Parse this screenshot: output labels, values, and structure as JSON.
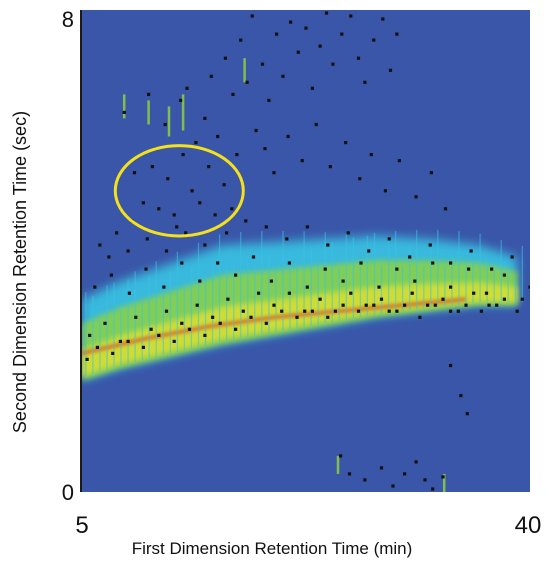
{
  "chart_data": {
    "type": "heatmap",
    "title": "",
    "xlabel": "First Dimension Retention Time (min)",
    "ylabel": "Second Dimension Retention Time (sec)",
    "xlim": [
      5,
      40
    ],
    "ylim": [
      0,
      8
    ],
    "x_ticks": [
      "5",
      "40"
    ],
    "y_ticks": [
      "0",
      "8"
    ],
    "grid": false,
    "legend": "none",
    "colors": {
      "background": "#3a56a8",
      "low": "#39c4e3",
      "mid": "#8dd23f",
      "high": "#e8e12a",
      "peak": "#e02a1b",
      "points": "#111111",
      "highlight_ellipse": "#f5e11b"
    },
    "density_band": {
      "description_units": "retention time: x in min, y in sec",
      "lower_edge": [
        [
          5.0,
          1.85
        ],
        [
          8,
          2.05
        ],
        [
          12,
          2.25
        ],
        [
          16,
          2.45
        ],
        [
          20,
          2.6
        ],
        [
          24,
          2.75
        ],
        [
          28,
          2.9
        ],
        [
          32,
          3.0
        ],
        [
          36,
          3.1
        ],
        [
          39,
          3.1
        ]
      ],
      "upper_edge": [
        [
          5.0,
          3.2
        ],
        [
          8,
          3.5
        ],
        [
          12,
          3.8
        ],
        [
          16,
          4.1
        ],
        [
          20,
          4.15
        ],
        [
          24,
          4.2
        ],
        [
          28,
          4.25
        ],
        [
          32,
          4.2
        ],
        [
          36,
          4.1
        ],
        [
          39,
          3.9
        ]
      ],
      "hot_ridge_y": [
        [
          5.0,
          2.3
        ],
        [
          10,
          2.55
        ],
        [
          15,
          2.75
        ],
        [
          20,
          2.9
        ],
        [
          25,
          3.0
        ],
        [
          30,
          3.1
        ],
        [
          35,
          3.2
        ]
      ]
    },
    "highlight_region": {
      "center": [
        12.6,
        5.0
      ],
      "radius": [
        5.0,
        0.75
      ]
    },
    "series": [
      {
        "type": "scatter",
        "points": [
          [
            8.3,
            6.3
          ],
          [
            10.2,
            6.6
          ],
          [
            11.5,
            6.1
          ],
          [
            12.7,
            6.5
          ],
          [
            13.2,
            6.7
          ],
          [
            14.6,
            6.2
          ],
          [
            15.1,
            6.9
          ],
          [
            16.2,
            7.2
          ],
          [
            16.8,
            6.6
          ],
          [
            17.4,
            7.5
          ],
          [
            17.9,
            6.8
          ],
          [
            18.3,
            7.9
          ],
          [
            19.1,
            7.1
          ],
          [
            19.6,
            6.5
          ],
          [
            20.2,
            7.6
          ],
          [
            20.7,
            6.9
          ],
          [
            21.3,
            7.8
          ],
          [
            21.9,
            7.3
          ],
          [
            22.5,
            7.7
          ],
          [
            23.0,
            6.7
          ],
          [
            23.6,
            7.4
          ],
          [
            24.1,
            7.95
          ],
          [
            24.6,
            7.1
          ],
          [
            25.3,
            7.6
          ],
          [
            26.0,
            7.9
          ],
          [
            26.6,
            7.2
          ],
          [
            27.1,
            6.8
          ],
          [
            27.8,
            7.5
          ],
          [
            28.5,
            7.85
          ],
          [
            29.1,
            7.0
          ],
          [
            29.6,
            7.6
          ],
          [
            15.6,
            5.9
          ],
          [
            17.1,
            5.6
          ],
          [
            18.6,
            6.0
          ],
          [
            19.3,
            5.7
          ],
          [
            20.0,
            5.3
          ],
          [
            21.1,
            5.9
          ],
          [
            22.2,
            5.5
          ],
          [
            23.3,
            6.1
          ],
          [
            24.4,
            5.4
          ],
          [
            25.6,
            5.8
          ],
          [
            26.7,
            5.2
          ],
          [
            27.6,
            5.6
          ],
          [
            28.7,
            5.0
          ],
          [
            29.8,
            5.5
          ],
          [
            31.1,
            4.9
          ],
          [
            32.3,
            5.3
          ],
          [
            33.4,
            4.7
          ],
          [
            9.1,
            5.3
          ],
          [
            9.8,
            4.8
          ],
          [
            10.5,
            5.4
          ],
          [
            11.0,
            4.7
          ],
          [
            11.7,
            5.2
          ],
          [
            12.2,
            4.6
          ],
          [
            12.9,
            5.6
          ],
          [
            13.6,
            5.0
          ],
          [
            14.2,
            4.8
          ],
          [
            14.9,
            5.4
          ],
          [
            15.4,
            4.6
          ],
          [
            16.1,
            5.1
          ],
          [
            16.7,
            4.7
          ],
          [
            10.8,
            5.7
          ],
          [
            13.9,
            5.8
          ],
          [
            12.4,
            4.4
          ],
          [
            8.9,
            4.5
          ],
          [
            7.7,
            4.3
          ],
          [
            6.4,
            4.1
          ],
          [
            7.1,
            3.9
          ],
          [
            8.6,
            4.0
          ],
          [
            10.1,
            4.2
          ],
          [
            11.6,
            4.0
          ],
          [
            13.1,
            4.3
          ],
          [
            14.6,
            4.1
          ],
          [
            16.3,
            4.3
          ],
          [
            17.8,
            4.5
          ],
          [
            19.4,
            4.4
          ],
          [
            21.0,
            4.2
          ],
          [
            22.6,
            4.4
          ],
          [
            24.2,
            4.1
          ],
          [
            25.8,
            4.3
          ],
          [
            27.4,
            4.0
          ],
          [
            29.0,
            4.2
          ],
          [
            30.6,
            3.9
          ],
          [
            32.2,
            4.1
          ],
          [
            33.8,
            3.8
          ],
          [
            35.4,
            4.0
          ],
          [
            37.0,
            3.7
          ],
          [
            38.6,
            3.9
          ],
          [
            6.0,
            3.4
          ],
          [
            7.3,
            3.6
          ],
          [
            8.7,
            3.3
          ],
          [
            10.0,
            3.7
          ],
          [
            11.4,
            3.4
          ],
          [
            12.8,
            3.8
          ],
          [
            14.2,
            3.5
          ],
          [
            15.6,
            3.8
          ],
          [
            17.0,
            3.6
          ],
          [
            18.4,
            3.9
          ],
          [
            19.8,
            3.5
          ],
          [
            21.2,
            3.8
          ],
          [
            22.6,
            3.4
          ],
          [
            24.0,
            3.7
          ],
          [
            25.4,
            3.5
          ],
          [
            26.8,
            3.8
          ],
          [
            28.2,
            3.4
          ],
          [
            29.6,
            3.7
          ],
          [
            31.0,
            3.5
          ],
          [
            32.4,
            3.8
          ],
          [
            33.8,
            3.4
          ],
          [
            35.2,
            3.7
          ],
          [
            36.6,
            3.3
          ],
          [
            38.0,
            3.6
          ],
          [
            39.4,
            3.2
          ],
          [
            5.6,
            2.6
          ],
          [
            6.8,
            2.8
          ],
          [
            8.0,
            2.5
          ],
          [
            9.2,
            2.9
          ],
          [
            10.4,
            2.7
          ],
          [
            11.6,
            3.0
          ],
          [
            12.8,
            2.8
          ],
          [
            14.0,
            3.1
          ],
          [
            15.2,
            2.9
          ],
          [
            16.4,
            3.2
          ],
          [
            17.6,
            3.0
          ],
          [
            18.8,
            3.3
          ],
          [
            20.0,
            3.1
          ],
          [
            21.2,
            3.3
          ],
          [
            22.4,
            3.0
          ],
          [
            23.6,
            3.2
          ],
          [
            24.8,
            3.0
          ],
          [
            26.0,
            3.3
          ],
          [
            27.2,
            3.1
          ],
          [
            28.4,
            3.2
          ],
          [
            29.6,
            3.0
          ],
          [
            30.8,
            3.3
          ],
          [
            32.0,
            3.1
          ],
          [
            33.2,
            3.2
          ],
          [
            34.4,
            3.0
          ],
          [
            35.6,
            3.3
          ],
          [
            36.8,
            3.1
          ],
          [
            38.0,
            3.2
          ],
          [
            5.4,
            2.2
          ],
          [
            6.2,
            2.4
          ],
          [
            7.4,
            2.3
          ],
          [
            8.6,
            2.5
          ],
          [
            9.8,
            2.4
          ],
          [
            11.0,
            2.6
          ],
          [
            12.2,
            2.5
          ],
          [
            13.4,
            2.7
          ],
          [
            14.6,
            2.6
          ],
          [
            15.8,
            2.8
          ],
          [
            17.0,
            2.7
          ],
          [
            18.2,
            2.9
          ],
          [
            19.4,
            2.8
          ],
          [
            20.6,
            3.0
          ],
          [
            21.8,
            2.9
          ],
          [
            23.0,
            3.0
          ],
          [
            24.2,
            2.9
          ],
          [
            25.4,
            3.1
          ],
          [
            26.6,
            3.0
          ],
          [
            27.8,
            3.1
          ],
          [
            29.0,
            3.0
          ],
          [
            30.2,
            3.1
          ],
          [
            31.4,
            2.9
          ],
          [
            32.6,
            3.1
          ],
          [
            33.8,
            3.0
          ],
          [
            35.0,
            3.1
          ],
          [
            36.2,
            3.0
          ],
          [
            37.4,
            3.1
          ],
          [
            39.0,
            3.0
          ],
          [
            40.0,
            3.4
          ],
          [
            25.2,
            0.6
          ],
          [
            25.9,
            0.3
          ],
          [
            27.1,
            0.2
          ],
          [
            28.4,
            0.4
          ],
          [
            29.3,
            0.1
          ],
          [
            30.2,
            0.3
          ],
          [
            31.1,
            0.5
          ],
          [
            31.8,
            0.2
          ],
          [
            32.4,
            0.05
          ],
          [
            33.2,
            0.25
          ],
          [
            34.6,
            1.6
          ],
          [
            35.1,
            1.3
          ],
          [
            33.8,
            2.1
          ]
        ]
      }
    ]
  }
}
